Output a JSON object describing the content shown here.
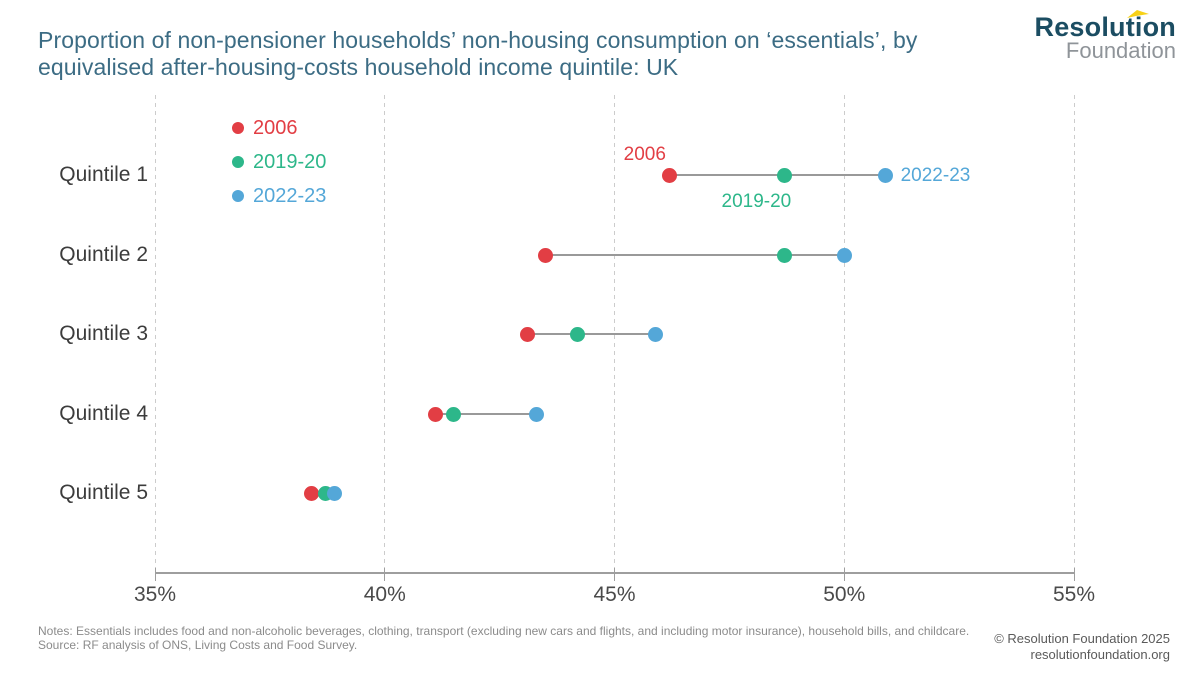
{
  "header": {
    "logo": {
      "line1": "Resolution",
      "line2": "Foundation",
      "accent_color": "#f7d117"
    }
  },
  "chart_data": {
    "type": "dumbbell",
    "title": "Proportion of non-pensioner households’ non-housing consumption on ‘essentials’, by equivalised after-housing-costs household income quintile: UK",
    "categories": [
      "Quintile 1",
      "Quintile 2",
      "Quintile 3",
      "Quintile 4",
      "Quintile 5"
    ],
    "series": [
      {
        "name": "2006",
        "color": "#e23e44",
        "values": [
          46.2,
          43.5,
          43.1,
          41.1,
          38.4
        ]
      },
      {
        "name": "2019-20",
        "color": "#2db78a",
        "values": [
          48.7,
          48.7,
          44.2,
          41.5,
          38.7
        ]
      },
      {
        "name": "2022-23",
        "color": "#54a7d8",
        "values": [
          50.9,
          50.0,
          45.9,
          43.3,
          38.9
        ]
      }
    ],
    "xlim": [
      35,
      55
    ],
    "xticks": [
      {
        "value": 35,
        "label": "35%"
      },
      {
        "value": 40,
        "label": "40%"
      },
      {
        "value": 45,
        "label": "45%"
      },
      {
        "value": 50,
        "label": "50%"
      },
      {
        "value": 55,
        "label": "55%"
      }
    ],
    "grid": "vertical-dashed",
    "legend_position": "top-left",
    "annotations": [
      {
        "text": "2006",
        "color": "#e23e44",
        "category_index": 0,
        "series_index": 0,
        "placement": "above-left"
      },
      {
        "text": "2019-20",
        "color": "#2db78a",
        "category_index": 0,
        "series_index": 1,
        "placement": "below"
      },
      {
        "text": "2022-23",
        "color": "#54a7d8",
        "category_index": 0,
        "series_index": 2,
        "placement": "right"
      }
    ]
  },
  "footer": {
    "notes": "Notes: Essentials includes food and non-alcoholic beverages, clothing, transport (excluding new cars and flights, and including motor insurance), household bills, and childcare.",
    "source": "Source: RF analysis of ONS, Living Costs and Food Survey.",
    "copyright": "© Resolution Foundation 2025",
    "website": "resolutionfoundation.org"
  }
}
